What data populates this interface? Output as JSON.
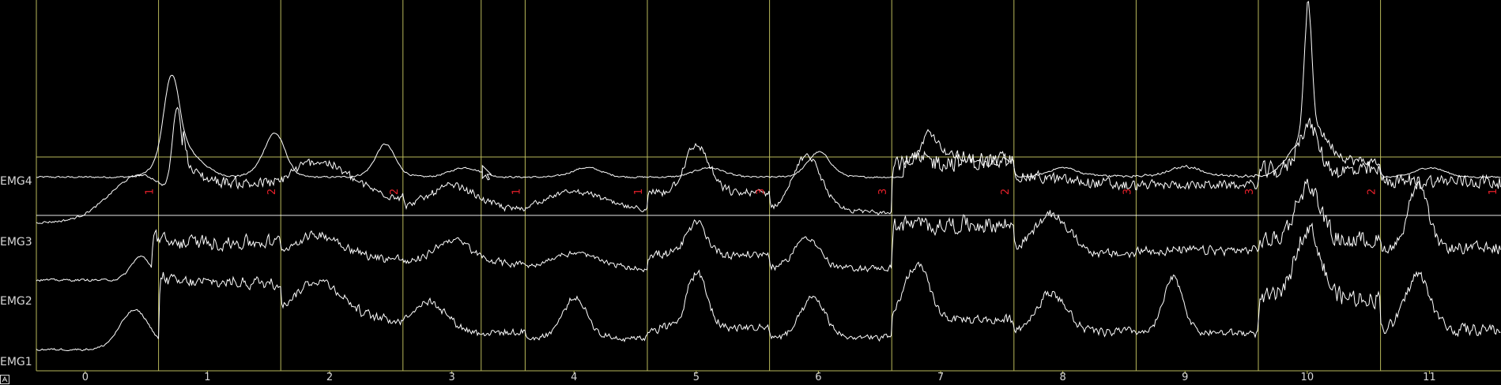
{
  "channels": [
    {
      "name": "EMG4"
    },
    {
      "name": "EMG3"
    },
    {
      "name": "EMG2"
    },
    {
      "name": "EMG1"
    }
  ],
  "x_axis": {
    "ticks": [
      "0",
      "1",
      "2",
      "3",
      "4",
      "5",
      "6",
      "7",
      "8",
      "9",
      "10",
      "11"
    ],
    "range": [
      -0.4,
      11.6
    ]
  },
  "markers": [
    {
      "t": 0.6,
      "label": "1"
    },
    {
      "t": 1.6,
      "label": "2"
    },
    {
      "t": 2.6,
      "label": "2"
    },
    {
      "t": 3.6,
      "label": "1"
    },
    {
      "t": 4.6,
      "label": "1"
    },
    {
      "t": 5.6,
      "label": "3"
    },
    {
      "t": 6.6,
      "label": "3"
    },
    {
      "t": 7.6,
      "label": "2"
    },
    {
      "t": 8.6,
      "label": "3"
    },
    {
      "t": 9.6,
      "label": "3"
    },
    {
      "t": 10.6,
      "label": "2"
    },
    {
      "t": 11.6,
      "label": "1"
    }
  ],
  "extra_line_t": 3.24,
  "colors": {
    "background": "#000000",
    "grid": "#b8b85a",
    "signal": "#ffffff",
    "marker_label": "#e8202a",
    "text": "#d8d8d8"
  },
  "corner_icon": "axis-toggle-icon"
}
